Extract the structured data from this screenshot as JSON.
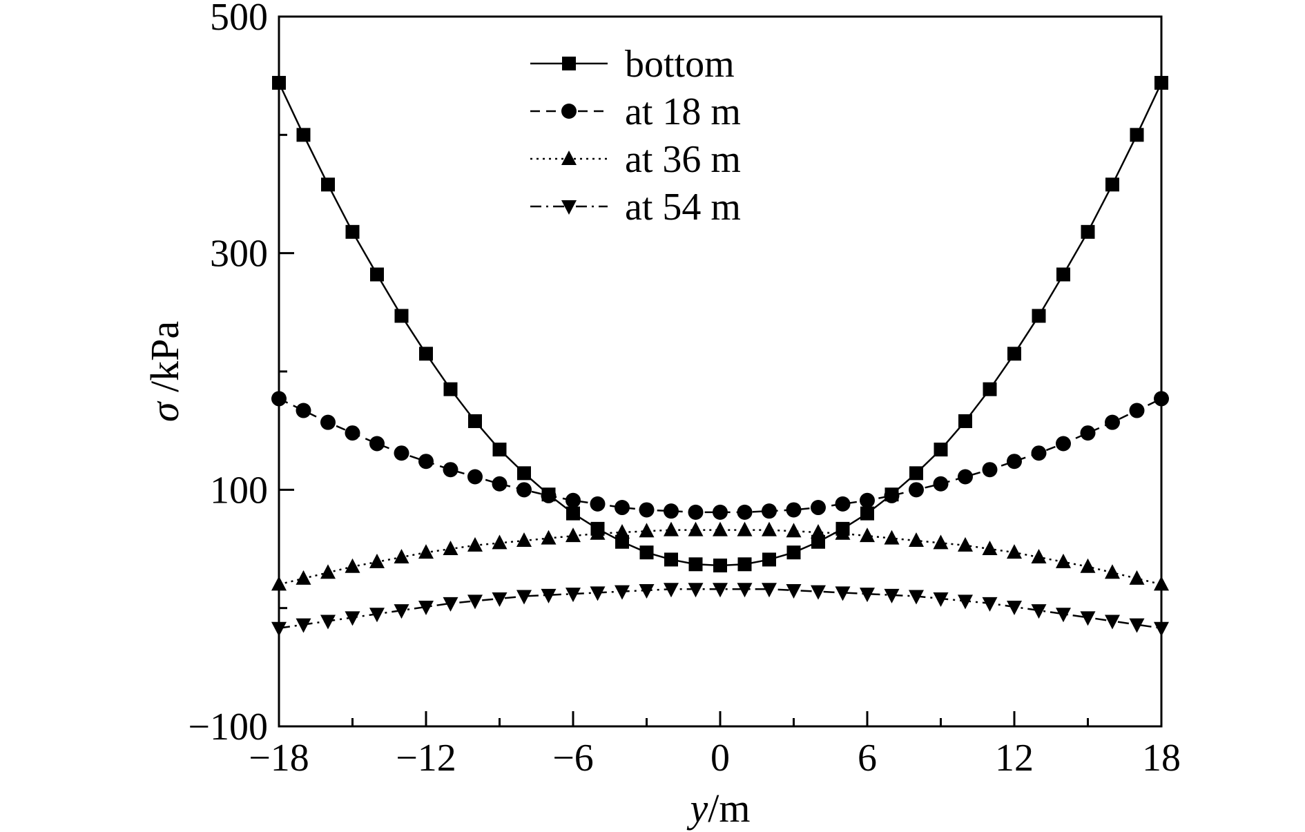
{
  "chart_data": {
    "type": "line",
    "xlabel": {
      "var": "y",
      "unit": "/m"
    },
    "ylabel": {
      "var": "σ",
      "unit": " /kPa"
    },
    "xlim": [
      -18,
      18
    ],
    "ylim": [
      -100,
      500
    ],
    "xticks": [
      -18,
      -12,
      -6,
      0,
      6,
      12,
      18
    ],
    "xtick_labels": [
      "−18",
      "−12",
      "−6",
      "0",
      "6",
      "12",
      "18"
    ],
    "yticks": [
      -100,
      100,
      300,
      500
    ],
    "ytick_labels": [
      "−100",
      "100",
      "300",
      "500"
    ],
    "y_minor_ticks": [
      0,
      200,
      400
    ],
    "grid": false,
    "legend_position": "top-center",
    "x": [
      -18,
      -17,
      -16,
      -15,
      -14,
      -13,
      -12,
      -11,
      -10,
      -9,
      -8,
      -7,
      -6,
      -5,
      -4,
      -3,
      -2,
      -1,
      0,
      1,
      2,
      3,
      4,
      5,
      6,
      7,
      8,
      9,
      10,
      11,
      12,
      13,
      14,
      15,
      16,
      17,
      18
    ],
    "series": [
      {
        "name": "bottom",
        "marker": "square",
        "line_style": "solid",
        "values": [
          444,
          400,
          358,
          318,
          282,
          247,
          215,
          185,
          158,
          134,
          114,
          96,
          80,
          67,
          56,
          47,
          41,
          37,
          36,
          37,
          41,
          47,
          56,
          67,
          80,
          96,
          114,
          134,
          158,
          185,
          215,
          247,
          282,
          318,
          358,
          400,
          444
        ]
      },
      {
        "name": "at 18 m",
        "marker": "circle",
        "line_style": "dashed",
        "values": [
          177,
          167,
          157,
          148,
          139,
          131,
          124,
          117,
          111,
          105,
          100,
          95,
          91,
          88,
          85,
          83,
          82,
          81,
          81,
          81,
          82,
          83,
          85,
          88,
          91,
          95,
          100,
          105,
          111,
          117,
          124,
          131,
          139,
          148,
          157,
          167,
          177
        ]
      },
      {
        "name": "at 36 m",
        "marker": "triangle-up",
        "line_style": "dotted",
        "values": [
          20,
          25,
          30,
          35,
          39,
          43,
          47,
          50,
          53,
          55,
          57,
          59,
          61,
          63,
          64,
          65,
          66,
          66,
          66,
          66,
          66,
          65,
          64,
          63,
          61,
          59,
          57,
          55,
          53,
          50,
          47,
          43,
          39,
          35,
          30,
          25,
          20
        ]
      },
      {
        "name": "at 54 m",
        "marker": "triangle-down",
        "line_style": "dashdot",
        "values": [
          -17,
          -14,
          -11,
          -8,
          -5,
          -2,
          1,
          4,
          6,
          8,
          10,
          11,
          12,
          13,
          14,
          15,
          16,
          16,
          16,
          16,
          16,
          15,
          14,
          13,
          12,
          11,
          10,
          8,
          6,
          4,
          1,
          -2,
          -5,
          -8,
          -11,
          -14,
          -17
        ]
      }
    ]
  }
}
